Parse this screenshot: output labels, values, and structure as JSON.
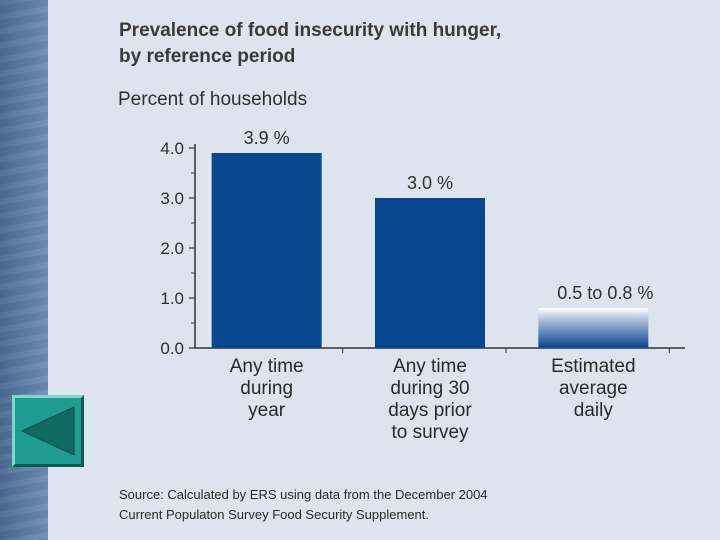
{
  "slide": {
    "title_line1": "Prevalence of food insecurity with hunger,",
    "title_line2": "by reference period",
    "y_axis_label": "Percent of households",
    "source_line1": "Source: Calculated by ERS using data from the December 2004",
    "source_line2": "Current Populaton Survey Food Security Supplement.",
    "nav": {
      "back_icon": "back-triangle-icon"
    }
  },
  "colors": {
    "bar": "#08468e",
    "background": "#dde4ee",
    "button": "#1f9c8f"
  },
  "chart_data": {
    "type": "bar",
    "title": "Prevalence of food insecurity with hunger, by reference period",
    "ylabel": "Percent of households",
    "xlabel": "",
    "ylim": [
      0,
      4.0
    ],
    "yticks": [
      0.0,
      1.0,
      2.0,
      3.0,
      4.0
    ],
    "ytick_labels": [
      "0.0",
      "1.0",
      "2.0",
      "3.0",
      "4.0"
    ],
    "categories": [
      [
        "Any time",
        "during",
        "year"
      ],
      [
        "Any time",
        "during 30",
        "days prior",
        "to survey"
      ],
      [
        "Estimated",
        "average",
        "daily"
      ]
    ],
    "values": [
      3.9,
      3.0,
      0.8
    ],
    "value_ranges": [
      null,
      null,
      [
        0.5,
        0.8
      ]
    ],
    "data_labels": [
      "3.9 %",
      "3.0 %",
      "0.5 to 0.8 %"
    ]
  }
}
